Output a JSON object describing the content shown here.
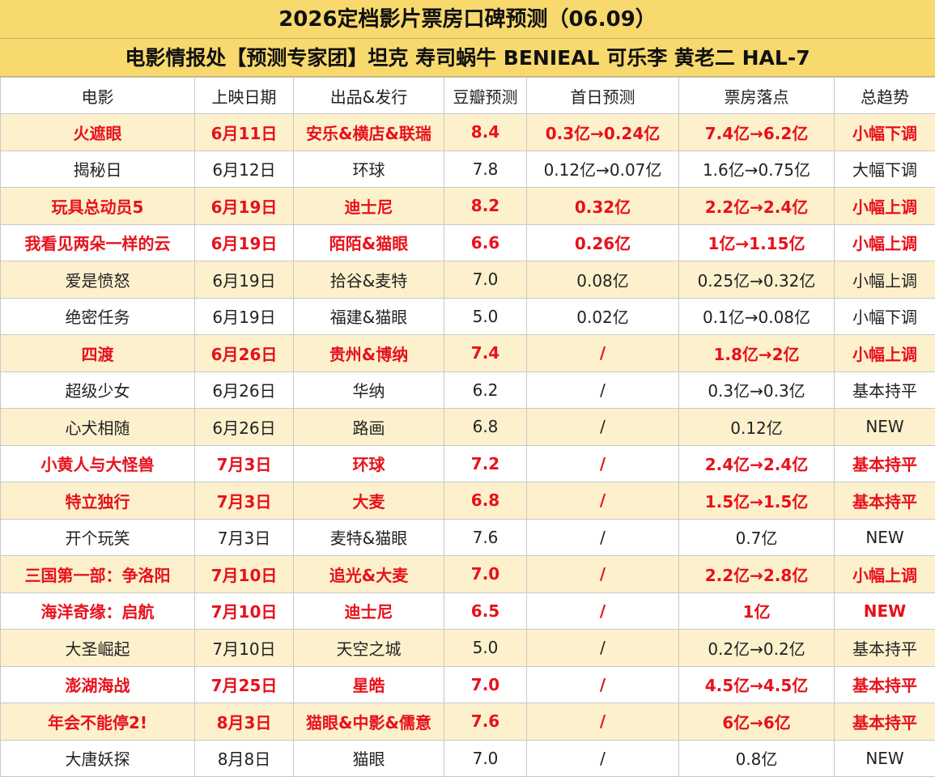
{
  "header": {
    "title": "2026定档影片票房口碑预测（06.09）",
    "subtitle": "电影情报处【预测专家团】坦克 寿司蜗牛 BENIEAL 可乐李 黄老二 HAL-7"
  },
  "table": {
    "columns": [
      "电影",
      "上映日期",
      "出品&发行",
      "豆瓣预测",
      "首日预测",
      "票房落点",
      "总趋势"
    ],
    "emphasis_color": "#e8111b",
    "rows": [
      {
        "emphasis": true,
        "cells": [
          "火遮眼",
          "6月11日",
          "安乐&横店&联瑞",
          "8.4",
          "0.3亿→0.24亿",
          "7.4亿→6.2亿",
          "小幅下调"
        ]
      },
      {
        "emphasis": false,
        "cells": [
          "揭秘日",
          "6月12日",
          "环球",
          "7.8",
          "0.12亿→0.07亿",
          "1.6亿→0.75亿",
          "大幅下调"
        ]
      },
      {
        "emphasis": true,
        "cells": [
          "玩具总动员5",
          "6月19日",
          "迪士尼",
          "8.2",
          "0.32亿",
          "2.2亿→2.4亿",
          "小幅上调"
        ]
      },
      {
        "emphasis": true,
        "cells": [
          "我看见两朵一样的云",
          "6月19日",
          "陌陌&猫眼",
          "6.6",
          "0.26亿",
          "1亿→1.15亿",
          "小幅上调"
        ]
      },
      {
        "emphasis": false,
        "cells": [
          "爱是愤怒",
          "6月19日",
          "拾谷&麦特",
          "7.0",
          "0.08亿",
          "0.25亿→0.32亿",
          "小幅上调"
        ]
      },
      {
        "emphasis": false,
        "cells": [
          "绝密任务",
          "6月19日",
          "福建&猫眼",
          "5.0",
          "0.02亿",
          "0.1亿→0.08亿",
          "小幅下调"
        ]
      },
      {
        "emphasis": true,
        "cells": [
          "四渡",
          "6月26日",
          "贵州&博纳",
          "7.4",
          "/",
          "1.8亿→2亿",
          "小幅上调"
        ]
      },
      {
        "emphasis": false,
        "cells": [
          "超级少女",
          "6月26日",
          "华纳",
          "6.2",
          "/",
          "0.3亿→0.3亿",
          "基本持平"
        ]
      },
      {
        "emphasis": false,
        "cells": [
          "心犬相随",
          "6月26日",
          "路画",
          "6.8",
          "/",
          "0.12亿",
          "NEW"
        ]
      },
      {
        "emphasis": true,
        "cells": [
          "小黄人与大怪兽",
          "7月3日",
          "环球",
          "7.2",
          "/",
          "2.4亿→2.4亿",
          "基本持平"
        ]
      },
      {
        "emphasis": true,
        "cells": [
          "特立独行",
          "7月3日",
          "大麦",
          "6.8",
          "/",
          "1.5亿→1.5亿",
          "基本持平"
        ]
      },
      {
        "emphasis": false,
        "cells": [
          "开个玩笑",
          "7月3日",
          "麦特&猫眼",
          "7.6",
          "/",
          "0.7亿",
          "NEW"
        ]
      },
      {
        "emphasis": true,
        "cells": [
          "三国第一部：争洛阳",
          "7月10日",
          "追光&大麦",
          "7.0",
          "/",
          "2.2亿→2.8亿",
          "小幅上调"
        ]
      },
      {
        "emphasis": true,
        "cells": [
          "海洋奇缘：启航",
          "7月10日",
          "迪士尼",
          "6.5",
          "/",
          "1亿",
          "NEW"
        ]
      },
      {
        "emphasis": false,
        "cells": [
          "大圣崛起",
          "7月10日",
          "天空之城",
          "5.0",
          "/",
          "0.2亿→0.2亿",
          "基本持平"
        ]
      },
      {
        "emphasis": true,
        "cells": [
          "澎湖海战",
          "7月25日",
          "星皓",
          "7.0",
          "/",
          "4.5亿→4.5亿",
          "基本持平"
        ]
      },
      {
        "emphasis": true,
        "cells": [
          "年会不能停2!",
          "8月3日",
          "猫眼&中影&儒意",
          "7.6",
          "/",
          "6亿→6亿",
          "基本持平"
        ]
      },
      {
        "emphasis": false,
        "cells": [
          "大唐妖探",
          "8月8日",
          "猫眼",
          "7.0",
          "/",
          "0.8亿",
          "NEW"
        ]
      }
    ]
  }
}
